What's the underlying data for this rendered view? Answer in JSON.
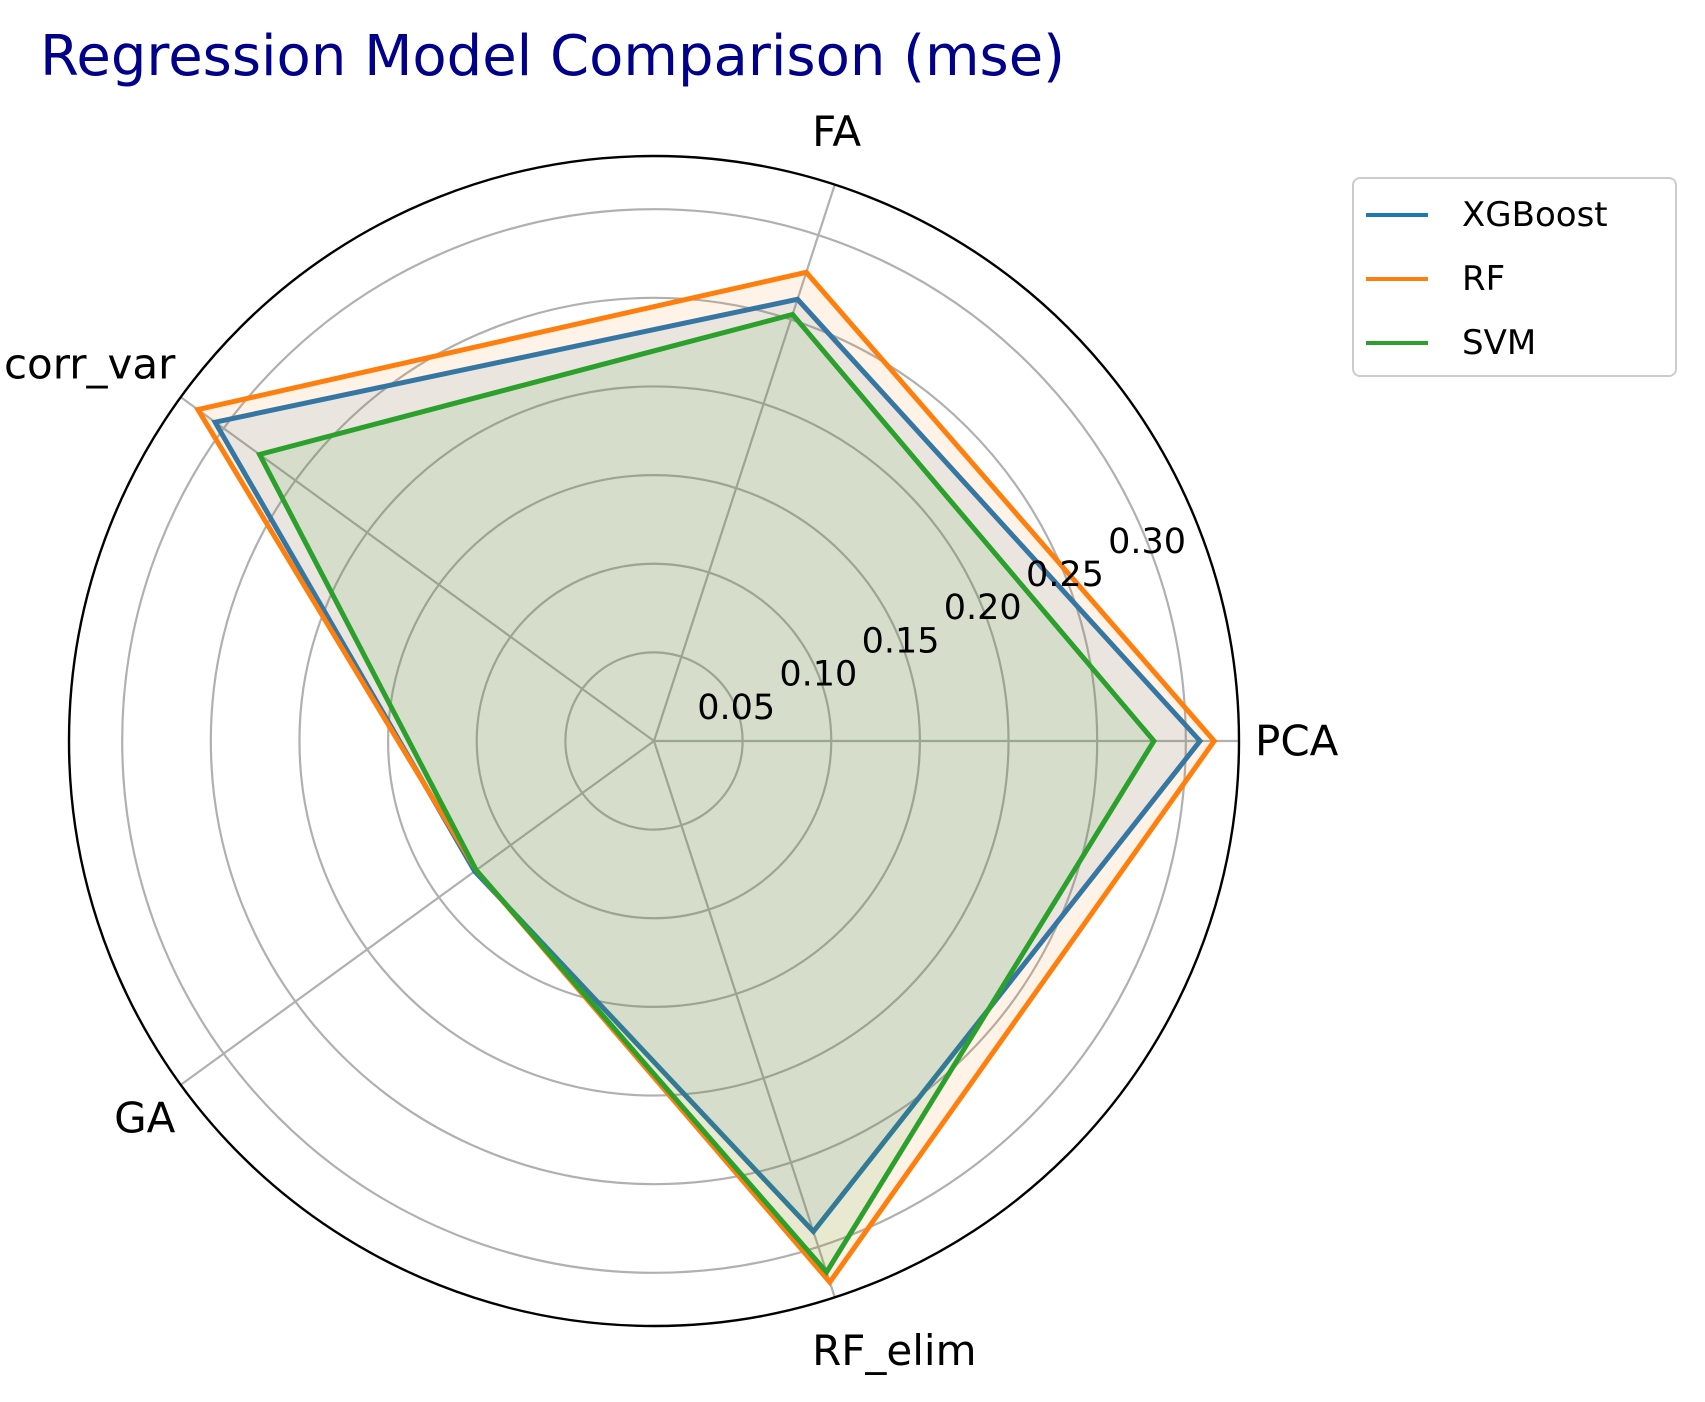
{
  "chart_data": {
    "type": "radar",
    "title": "Regression Model Comparison (mse)",
    "categories": [
      "PCA",
      "FA",
      "corr_var",
      "GA",
      "RF_elim"
    ],
    "rticks": [
      0.05,
      0.1,
      0.15,
      0.2,
      0.25,
      0.3
    ],
    "rtick_labels": [
      "0.05",
      "0.10",
      "0.15",
      "0.20",
      "0.25",
      "0.30"
    ],
    "rlim": [
      0,
      0.33
    ],
    "grid": true,
    "legend_position": "outside-top-right",
    "series": [
      {
        "name": "XGBoost",
        "color": "#1f77b4",
        "values": [
          0.308,
          0.262,
          0.306,
          0.125,
          0.291
        ]
      },
      {
        "name": "RF",
        "color": "#ff7f0e",
        "values": [
          0.316,
          0.278,
          0.318,
          0.124,
          0.321
        ]
      },
      {
        "name": "SVM",
        "color": "#2ca02c",
        "values": [
          0.282,
          0.253,
          0.275,
          0.124,
          0.315
        ]
      }
    ]
  }
}
